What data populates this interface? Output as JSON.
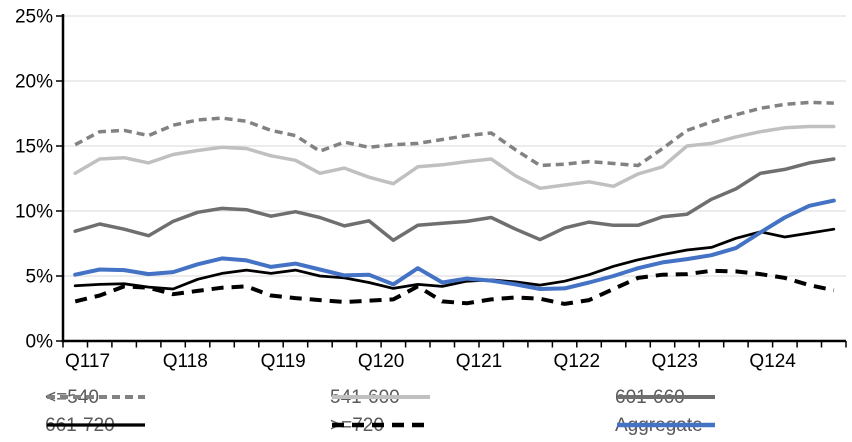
{
  "chart_data": {
    "type": "line",
    "title": "",
    "grid": true,
    "gridcolor": "#d9d9d9",
    "axis_color": "#000000",
    "legend_text_color": "#595959",
    "legend_position": "bottom",
    "y_axis": {
      "min": 0,
      "max": 25,
      "step": 5,
      "format": "percent"
    },
    "y_tick_labels": [
      "0%",
      "5%",
      "10%",
      "15%",
      "20%",
      "25%"
    ],
    "x_tick_labels": [
      "Q117",
      "Q118",
      "Q119",
      "Q120",
      "Q121",
      "Q122",
      "Q123",
      "Q124"
    ],
    "categories": [
      "Q117",
      "Q217",
      "Q317",
      "Q417",
      "Q118",
      "Q218",
      "Q318",
      "Q418",
      "Q119",
      "Q219",
      "Q319",
      "Q419",
      "Q120",
      "Q220",
      "Q320",
      "Q420",
      "Q121",
      "Q221",
      "Q321",
      "Q421",
      "Q122",
      "Q222",
      "Q322",
      "Q422",
      "Q123",
      "Q223",
      "Q323",
      "Q423",
      "Q124",
      "Q224",
      "Q324",
      "Q424"
    ],
    "series": [
      {
        "name": "<=540",
        "color": "#828282",
        "style": "dashed",
        "dash": "8 5",
        "width": 3.5,
        "values": [
          15.1,
          16.1,
          16.2,
          15.8,
          16.6,
          17.0,
          17.15,
          16.9,
          16.2,
          15.8,
          14.6,
          15.3,
          14.9,
          15.1,
          15.2,
          15.5,
          15.8,
          16.0,
          14.7,
          13.5,
          13.6,
          13.8,
          13.65,
          13.5,
          14.8,
          16.2,
          16.85,
          17.4,
          17.9,
          18.2,
          18.35,
          18.3
        ]
      },
      {
        "name": "541-600",
        "color": "#c0c0c0",
        "style": "solid",
        "dash": "",
        "width": 3.5,
        "values": [
          12.9,
          14.0,
          14.1,
          13.7,
          14.35,
          14.65,
          14.9,
          14.8,
          14.25,
          13.9,
          12.9,
          13.3,
          12.6,
          12.1,
          13.4,
          13.55,
          13.8,
          14.0,
          12.7,
          11.75,
          12.0,
          12.25,
          11.9,
          12.85,
          13.4,
          15.0,
          15.2,
          15.7,
          16.1,
          16.4,
          16.5,
          16.5
        ]
      },
      {
        "name": "601-660",
        "color": "#6f6f6f",
        "style": "solid",
        "dash": "",
        "width": 3.5,
        "values": [
          8.45,
          9.0,
          8.6,
          8.1,
          9.2,
          9.9,
          10.2,
          10.1,
          9.6,
          9.95,
          9.5,
          8.85,
          9.25,
          7.75,
          8.9,
          9.05,
          9.2,
          9.5,
          8.6,
          7.8,
          8.7,
          9.15,
          8.9,
          8.9,
          9.55,
          9.75,
          10.9,
          11.7,
          12.9,
          13.2,
          13.7,
          14.0
        ]
      },
      {
        "name": "661-720",
        "color": "#000000",
        "style": "solid",
        "dash": "",
        "width": 2.75,
        "values": [
          4.25,
          4.35,
          4.4,
          4.15,
          4.0,
          4.75,
          5.2,
          5.45,
          5.2,
          5.45,
          5.0,
          4.85,
          4.5,
          4.05,
          4.35,
          4.2,
          4.6,
          4.7,
          4.55,
          4.3,
          4.6,
          5.1,
          5.75,
          6.25,
          6.65,
          7.0,
          7.2,
          7.9,
          8.4,
          8.0,
          8.3,
          8.6
        ]
      },
      {
        "name": ">=720",
        "color": "#000000",
        "style": "dashed",
        "dash": "12 8",
        "width": 4,
        "values": [
          3.05,
          3.5,
          4.2,
          4.1,
          3.6,
          3.85,
          4.1,
          4.2,
          3.5,
          3.3,
          3.15,
          3.0,
          3.1,
          3.2,
          4.2,
          3.05,
          2.9,
          3.2,
          3.35,
          3.25,
          2.85,
          3.15,
          4.0,
          4.85,
          5.1,
          5.15,
          5.4,
          5.35,
          5.15,
          4.85,
          4.3,
          3.9
        ]
      },
      {
        "name": "Aggregate",
        "color": "#4472c4",
        "style": "solid",
        "dash": "",
        "width": 4,
        "values": [
          5.1,
          5.5,
          5.45,
          5.15,
          5.3,
          5.9,
          6.35,
          6.2,
          5.7,
          5.95,
          5.5,
          5.05,
          5.1,
          4.35,
          5.6,
          4.5,
          4.8,
          4.65,
          4.35,
          4.0,
          4.05,
          4.5,
          5.0,
          5.6,
          6.05,
          6.3,
          6.6,
          7.15,
          8.35,
          9.5,
          10.4,
          10.8
        ]
      }
    ]
  }
}
